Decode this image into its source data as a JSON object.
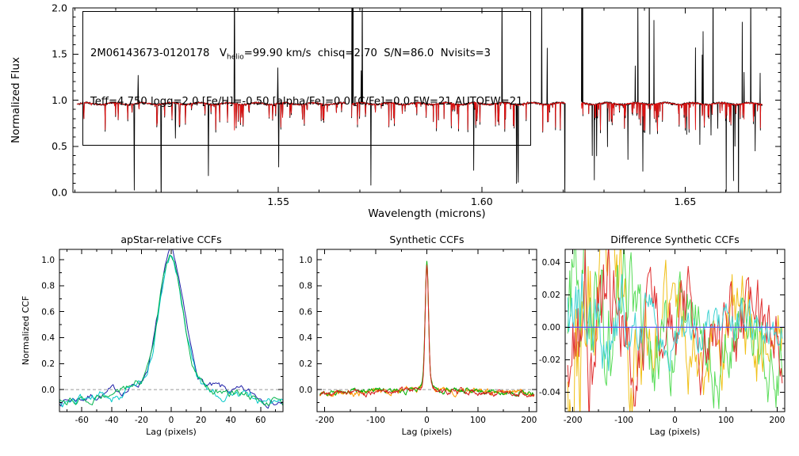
{
  "figure": {
    "background": "#ffffff"
  },
  "annotation": {
    "line1_pre": "2M06143673-0120178   V",
    "line1_sub": "helio",
    "line1_post": "=99.90 km/s  chisq=2.70  S/N=86.0  Nvisits=3",
    "line2": "Teff=4,750 logg=2.0 [Fe/H]=-0.50 [alpha/Fe]=0.0 [C/Fe]=0.0 FW=21 AUTOFW=21"
  },
  "chart_data": [
    {
      "id": "spectrum",
      "type": "line",
      "title": "",
      "xlabel": "Wavelength (microns)",
      "ylabel": "Normalized Flux",
      "xlim": [
        1.4995,
        1.6735
      ],
      "ylim": [
        0.0,
        2.0
      ],
      "xticks": [
        1.55,
        1.6,
        1.65
      ],
      "xtick_labels": [
        "1.55",
        "1.60",
        "1.65"
      ],
      "xminor": 5,
      "yticks": [
        0.0,
        0.5,
        1.0,
        1.5,
        2.0
      ],
      "ytick_labels": [
        "0.0",
        "0.5",
        "1.0",
        "1.5",
        "2.0"
      ],
      "yminor": 5,
      "pos": {
        "l": 92,
        "t": 10,
        "r": 985,
        "b": 243
      },
      "tick": 7,
      "mtick": 3.5,
      "fonts": {
        "tick": 12.5,
        "label": 13.5,
        "title": 13
      },
      "label_off": {
        "xtick": 16,
        "xlabel": 31,
        "ytick": 7,
        "ylabel_x": 24
      },
      "series": [
        {
          "name": "observed-spectrum",
          "color": "#000000",
          "width": 0.9
        },
        {
          "name": "best-fit-model",
          "color": "#dd1111",
          "width": 0.9
        }
      ],
      "gen": {
        "kind": "spectrum",
        "seed": 42,
        "segments": [
          [
            1.5005,
            1.5665
          ],
          [
            1.568,
            1.6205
          ],
          [
            1.6245,
            1.669
          ]
        ],
        "n": 620,
        "baseline": 0.962,
        "wiggle_amp": 0.01,
        "line_prob": 0.12,
        "line_depth": 0.32,
        "obs_noise": 0.012,
        "model_noise": 0.006,
        "model_scale": 0.92,
        "spike_prob_up": 0.006,
        "spike_up": 1.5,
        "spike_prob_down": 0.014,
        "spike_down": 1.0,
        "seg_spike_mult": [
          1,
          1,
          2.2
        ],
        "edge_spikes": [
          1,
          2
        ]
      }
    },
    {
      "id": "ccf-apstar",
      "type": "line",
      "title": "apStar-relative CCFs",
      "xlabel": "Lag (pixels)",
      "ylabel": "Normalized CCF",
      "xlim": [
        -75,
        75
      ],
      "ylim": [
        -0.17,
        1.08
      ],
      "xticks": [
        -60,
        -40,
        -20,
        0,
        20,
        40,
        60
      ],
      "xtick_labels": [
        "-60",
        "-40",
        "-20",
        "0",
        "20",
        "40",
        "60"
      ],
      "xminor": 2,
      "yticks": [
        0.0,
        0.2,
        0.4,
        0.6,
        0.8,
        1.0
      ],
      "ytick_labels": [
        "0.0",
        "0.2",
        "0.4",
        "0.6",
        "0.8",
        "1.0"
      ],
      "yminor": 2,
      "pos": {
        "l": 75,
        "t": 315,
        "r": 357,
        "b": 520
      },
      "tick": 6,
      "mtick": 3,
      "fonts": {
        "tick": 10.5,
        "label": 11,
        "title": 12.5
      },
      "label_off": {
        "xtick": 14,
        "xlabel": 29,
        "ytick": 6,
        "ylabel_x": 36
      },
      "refline": {
        "y": 0,
        "color": "#999999",
        "dash": "4 3",
        "width": 1
      },
      "series": [
        {
          "name": "visit-1",
          "color": "#2020a8",
          "width": 1
        },
        {
          "name": "visit-2",
          "color": "#00c8c8",
          "width": 1
        },
        {
          "name": "visit-3",
          "color": "#00b44c",
          "width": 1
        }
      ],
      "gen": {
        "kind": "ccf",
        "seed": 7,
        "x0": -75,
        "x1": 75,
        "step": 1,
        "xmax": 75,
        "gauss_h": 0.84,
        "gauss_w": 8.0,
        "lor_h": 0.2,
        "lor_w": 15,
        "base": -0.03,
        "edge_dip": 0.07,
        "edge_pow": 2,
        "smooth": 0.82,
        "gust": 0.05,
        "series_gen": [
          {
            "noise_scale": 1.0,
            "offset": 0.005
          },
          {
            "noise_scale": 1.3,
            "offset": -0.015
          },
          {
            "noise_scale": 1.0,
            "offset": 0.0
          }
        ]
      }
    },
    {
      "id": "ccf-synthetic",
      "type": "line",
      "title": "Synthetic CCFs",
      "xlabel": "Lag (pixels)",
      "ylabel": "",
      "xlim": [
        -215,
        215
      ],
      "ylim": [
        -0.17,
        1.08
      ],
      "xticks": [
        -200,
        -100,
        0,
        100,
        200
      ],
      "xtick_labels": [
        "-200",
        "-100",
        "0",
        "100",
        "200"
      ],
      "xminor": 2,
      "yticks": [
        0.0,
        0.2,
        0.4,
        0.6,
        0.8,
        1.0
      ],
      "ytick_labels": [
        "0.0",
        "0.2",
        "0.4",
        "0.6",
        "0.8",
        "1.0"
      ],
      "yminor": 2,
      "pos": {
        "l": 400,
        "t": 315,
        "r": 677,
        "b": 520
      },
      "tick": 6,
      "mtick": 3,
      "fonts": {
        "tick": 10.5,
        "label": 11,
        "title": 12.5
      },
      "label_off": {
        "xtick": 14,
        "xlabel": 29,
        "ytick": 6,
        "ylabel_x": 0
      },
      "refline": {
        "y": 0,
        "color": "#999999",
        "dash": "4 3",
        "width": 1
      },
      "series": [
        {
          "name": "synth-1",
          "color": "#ff9900",
          "width": 1
        },
        {
          "name": "synth-2",
          "color": "#00b000",
          "width": 1
        },
        {
          "name": "synth-3",
          "color": "#d42020",
          "width": 1
        }
      ],
      "gen": {
        "kind": "ccf",
        "seed": 19,
        "x0": -210,
        "x1": 210,
        "step": 1,
        "xmax": 210,
        "gauss_h": 0.9,
        "gauss_w": 3.2,
        "lor_h": 0.1,
        "lor_w": 9,
        "base": -0.012,
        "edge_dip": 0.02,
        "edge_pow": 2,
        "smooth": 0.8,
        "gust": 0.025,
        "series_gen": [
          {
            "noise_scale": 1.2,
            "offset": 0.0
          },
          {
            "noise_scale": 1.0,
            "offset": 0.004
          },
          {
            "noise_scale": 1.0,
            "offset": -0.004
          }
        ]
      }
    },
    {
      "id": "ccf-diff",
      "type": "line",
      "title": "Difference Synthetic CCFs",
      "xlabel": "Lag (pixels)",
      "ylabel": "",
      "xlim": [
        -215,
        215
      ],
      "ylim": [
        -0.052,
        0.048
      ],
      "xticks": [
        -200,
        -100,
        0,
        100,
        200
      ],
      "xtick_labels": [
        "-200",
        "-100",
        "0",
        "100",
        "200"
      ],
      "xminor": 2,
      "yticks": [
        -0.04,
        -0.02,
        0.0,
        0.02,
        0.04
      ],
      "ytick_labels": [
        "-0.04",
        "-0.02",
        "0.00",
        "0.02",
        "0.04"
      ],
      "yminor": 2,
      "pos": {
        "l": 713,
        "t": 315,
        "r": 990,
        "b": 520
      },
      "tick": 6,
      "mtick": 3,
      "fonts": {
        "tick": 10.5,
        "label": 11,
        "title": 12.5
      },
      "label_off": {
        "xtick": 14,
        "xlabel": 29,
        "ytick": 6,
        "ylabel_x": 0
      },
      "refline": {
        "y": 0,
        "color": "#5a5af0",
        "dash": null,
        "width": 1.3
      },
      "refline_on_top": true,
      "series": [
        {
          "name": "diff-1",
          "color": "#f0c018",
          "width": 1
        },
        {
          "name": "diff-2",
          "color": "#58dc58",
          "width": 1
        },
        {
          "name": "diff-3",
          "color": "#e03030",
          "width": 1
        },
        {
          "name": "diff-4",
          "color": "#3fd2d2",
          "width": 1
        }
      ],
      "gen": {
        "kind": "walk",
        "seed": 23,
        "x0": -210,
        "x1": 210,
        "step": 2,
        "smooth": 0.86,
        "gust": 0.03,
        "left_boost": 1.2,
        "series_gen": [
          {
            "scale": 1.25
          },
          {
            "scale": 1.15
          },
          {
            "scale": 1.1
          },
          {
            "scale": 0.6
          }
        ]
      }
    }
  ]
}
